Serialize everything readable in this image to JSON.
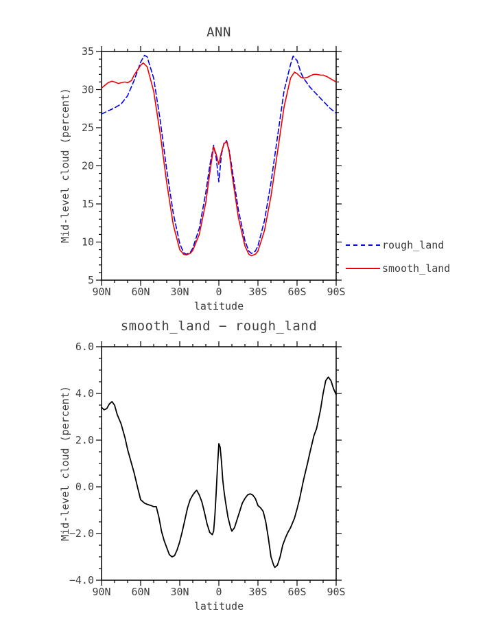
{
  "figure": {
    "background": "#ffffff",
    "text_color": "#3f3f3f",
    "axis_color": "#000000"
  },
  "top_chart": {
    "title": "ANN",
    "ylabel": "Mid-level cloud (percent)",
    "xlabel": "latitude"
  },
  "bottom_chart": {
    "title": "smooth_land − rough_land",
    "ylabel": "Mid-level cloud (percent)",
    "xlabel": "latitude"
  },
  "legend": {
    "items": [
      {
        "label": "rough_land",
        "color": "#0000ee",
        "style": "dashed"
      },
      {
        "label": "smooth_land",
        "color": "#ee0000",
        "style": "solid"
      }
    ]
  },
  "chart_data": [
    {
      "type": "line",
      "title": "ANN",
      "xlabel": "latitude",
      "ylabel": "Mid-level cloud (percent)",
      "x_range": [
        -90,
        90
      ],
      "y_range": [
        5,
        35
      ],
      "x_minor_step": 10,
      "y_minor_step": 1,
      "x_ticks": [
        {
          "v": 90,
          "label": "90N"
        },
        {
          "v": 60,
          "label": "60N"
        },
        {
          "v": 30,
          "label": "30N"
        },
        {
          "v": 0,
          "label": "0"
        },
        {
          "v": -30,
          "label": "30S"
        },
        {
          "v": -60,
          "label": "60S"
        },
        {
          "v": -90,
          "label": "90S"
        }
      ],
      "y_ticks": [
        {
          "v": 5,
          "label": "5"
        },
        {
          "v": 10,
          "label": "10"
        },
        {
          "v": 15,
          "label": "15"
        },
        {
          "v": 20,
          "label": "20"
        },
        {
          "v": 25,
          "label": "25"
        },
        {
          "v": 30,
          "label": "30"
        },
        {
          "v": 35,
          "label": "35"
        }
      ],
      "grid": false,
      "legend_position": "right",
      "series": [
        {
          "name": "rough_land",
          "color": "#0000ee",
          "dash": "7,4",
          "width": 1.6,
          "points": [
            [
              90,
              26.8
            ],
            [
              85,
              27.2
            ],
            [
              80,
              27.6
            ],
            [
              75,
              28.1
            ],
            [
              70,
              29.2
            ],
            [
              65,
              31.2
            ],
            [
              60,
              33.6
            ],
            [
              57,
              34.5
            ],
            [
              55,
              34.3
            ],
            [
              50,
              31.5
            ],
            [
              45,
              26.0
            ],
            [
              40,
              19.5
            ],
            [
              35,
              13.8
            ],
            [
              30,
              9.8
            ],
            [
              27,
              8.6
            ],
            [
              25,
              8.4
            ],
            [
              22,
              8.6
            ],
            [
              20,
              9.2
            ],
            [
              15,
              11.8
            ],
            [
              10,
              16.5
            ],
            [
              7,
              20.0
            ],
            [
              4,
              22.7
            ],
            [
              2,
              21.0
            ],
            [
              0,
              17.9
            ],
            [
              -2,
              21.5
            ],
            [
              -4,
              23.0
            ],
            [
              -6,
              23.3
            ],
            [
              -8,
              22.0
            ],
            [
              -10,
              19.8
            ],
            [
              -15,
              14.2
            ],
            [
              -20,
              10.2
            ],
            [
              -23,
              8.8
            ],
            [
              -25,
              8.5
            ],
            [
              -28,
              8.8
            ],
            [
              -30,
              9.5
            ],
            [
              -35,
              12.8
            ],
            [
              -40,
              17.8
            ],
            [
              -45,
              23.8
            ],
            [
              -50,
              29.8
            ],
            [
              -55,
              33.3
            ],
            [
              -57,
              34.4
            ],
            [
              -60,
              33.8
            ],
            [
              -63,
              32.2
            ],
            [
              -65,
              31.5
            ],
            [
              -70,
              30.3
            ],
            [
              -75,
              29.4
            ],
            [
              -80,
              28.5
            ],
            [
              -85,
              27.6
            ],
            [
              -90,
              26.9
            ]
          ]
        },
        {
          "name": "smooth_land",
          "color": "#ee0000",
          "dash": null,
          "width": 1.6,
          "points": [
            [
              90,
              30.2
            ],
            [
              85,
              30.9
            ],
            [
              82,
              31.1
            ],
            [
              80,
              31.0
            ],
            [
              77,
              30.8
            ],
            [
              75,
              30.9
            ],
            [
              72,
              31.0
            ],
            [
              70,
              30.9
            ],
            [
              67,
              31.2
            ],
            [
              65,
              31.9
            ],
            [
              60,
              33.2
            ],
            [
              58,
              33.5
            ],
            [
              55,
              33.0
            ],
            [
              50,
              29.8
            ],
            [
              45,
              24.2
            ],
            [
              40,
              17.8
            ],
            [
              35,
              12.3
            ],
            [
              30,
              9.0
            ],
            [
              27,
              8.4
            ],
            [
              25,
              8.3
            ],
            [
              22,
              8.5
            ],
            [
              20,
              8.9
            ],
            [
              15,
              11.0
            ],
            [
              10,
              15.2
            ],
            [
              7,
              19.0
            ],
            [
              4,
              22.5
            ],
            [
              2,
              21.5
            ],
            [
              0,
              20.2
            ],
            [
              -2,
              21.8
            ],
            [
              -4,
              22.9
            ],
            [
              -6,
              23.2
            ],
            [
              -8,
              21.8
            ],
            [
              -10,
              19.0
            ],
            [
              -15,
              13.2
            ],
            [
              -20,
              9.5
            ],
            [
              -23,
              8.4
            ],
            [
              -25,
              8.2
            ],
            [
              -28,
              8.4
            ],
            [
              -30,
              8.8
            ],
            [
              -35,
              11.5
            ],
            [
              -40,
              16.0
            ],
            [
              -45,
              21.8
            ],
            [
              -50,
              27.7
            ],
            [
              -55,
              31.5
            ],
            [
              -58,
              32.3
            ],
            [
              -60,
              32.1
            ],
            [
              -63,
              31.6
            ],
            [
              -65,
              31.5
            ],
            [
              -68,
              31.6
            ],
            [
              -70,
              31.8
            ],
            [
              -73,
              32.0
            ],
            [
              -75,
              32.0
            ],
            [
              -78,
              31.9
            ],
            [
              -80,
              31.9
            ],
            [
              -83,
              31.7
            ],
            [
              -85,
              31.5
            ],
            [
              -88,
              31.2
            ],
            [
              -90,
              31.0
            ]
          ]
        }
      ]
    },
    {
      "type": "line",
      "title": "smooth_land − rough_land",
      "xlabel": "latitude",
      "ylabel": "Mid-level cloud (percent)",
      "x_range": [
        -90,
        90
      ],
      "y_range": [
        -4,
        6
      ],
      "x_minor_step": 10,
      "y_minor_step": 0.5,
      "x_ticks": [
        {
          "v": 90,
          "label": "90N"
        },
        {
          "v": 60,
          "label": "60N"
        },
        {
          "v": 30,
          "label": "30N"
        },
        {
          "v": 0,
          "label": "0"
        },
        {
          "v": -30,
          "label": "30S"
        },
        {
          "v": -60,
          "label": "60S"
        },
        {
          "v": -90,
          "label": "90S"
        }
      ],
      "y_ticks": [
        {
          "v": -4,
          "label": "−4.0"
        },
        {
          "v": -2,
          "label": "−2.0"
        },
        {
          "v": 0,
          "label": "0.0"
        },
        {
          "v": 2,
          "label": "2.0"
        },
        {
          "v": 4,
          "label": "4.0"
        },
        {
          "v": 6,
          "label": "6.0"
        }
      ],
      "grid": false,
      "legend_position": "none",
      "series": [
        {
          "name": "smooth_land − rough_land",
          "color": "#000000",
          "dash": null,
          "width": 1.8,
          "points": [
            [
              90,
              3.4
            ],
            [
              88,
              3.3
            ],
            [
              86,
              3.35
            ],
            [
              84,
              3.55
            ],
            [
              82,
              3.65
            ],
            [
              80,
              3.5
            ],
            [
              78,
              3.1
            ],
            [
              75,
              2.7
            ],
            [
              72,
              2.1
            ],
            [
              70,
              1.6
            ],
            [
              67,
              1.0
            ],
            [
              65,
              0.6
            ],
            [
              62,
              -0.1
            ],
            [
              60,
              -0.55
            ],
            [
              57,
              -0.7
            ],
            [
              55,
              -0.75
            ],
            [
              52,
              -0.8
            ],
            [
              50,
              -0.85
            ],
            [
              48,
              -0.85
            ],
            [
              46,
              -1.3
            ],
            [
              44,
              -1.9
            ],
            [
              42,
              -2.3
            ],
            [
              40,
              -2.6
            ],
            [
              38,
              -2.9
            ],
            [
              36,
              -3.0
            ],
            [
              34,
              -2.95
            ],
            [
              32,
              -2.7
            ],
            [
              30,
              -2.35
            ],
            [
              28,
              -1.9
            ],
            [
              26,
              -1.4
            ],
            [
              24,
              -0.9
            ],
            [
              22,
              -0.55
            ],
            [
              20,
              -0.35
            ],
            [
              18,
              -0.2
            ],
            [
              17,
              -0.15
            ],
            [
              15,
              -0.35
            ],
            [
              13,
              -0.65
            ],
            [
              11,
              -1.1
            ],
            [
              9,
              -1.6
            ],
            [
              7,
              -1.95
            ],
            [
              5,
              -2.05
            ],
            [
              4,
              -1.9
            ],
            [
              3,
              -1.2
            ],
            [
              2,
              -0.2
            ],
            [
              1,
              0.9
            ],
            [
              0,
              1.85
            ],
            [
              -1,
              1.7
            ],
            [
              -2,
              1.1
            ],
            [
              -3,
              0.3
            ],
            [
              -4,
              -0.2
            ],
            [
              -5,
              -0.6
            ],
            [
              -7,
              -1.3
            ],
            [
              -9,
              -1.75
            ],
            [
              -10,
              -1.9
            ],
            [
              -12,
              -1.75
            ],
            [
              -14,
              -1.4
            ],
            [
              -16,
              -1.05
            ],
            [
              -18,
              -0.7
            ],
            [
              -20,
              -0.5
            ],
            [
              -22,
              -0.35
            ],
            [
              -24,
              -0.3
            ],
            [
              -26,
              -0.35
            ],
            [
              -28,
              -0.5
            ],
            [
              -30,
              -0.8
            ],
            [
              -32,
              -0.9
            ],
            [
              -34,
              -1.05
            ],
            [
              -36,
              -1.5
            ],
            [
              -38,
              -2.2
            ],
            [
              -40,
              -3.0
            ],
            [
              -42,
              -3.35
            ],
            [
              -43,
              -3.45
            ],
            [
              -45,
              -3.35
            ],
            [
              -47,
              -3.0
            ],
            [
              -49,
              -2.5
            ],
            [
              -51,
              -2.2
            ],
            [
              -53,
              -1.95
            ],
            [
              -55,
              -1.75
            ],
            [
              -58,
              -1.35
            ],
            [
              -60,
              -0.95
            ],
            [
              -62,
              -0.5
            ],
            [
              -65,
              0.3
            ],
            [
              -68,
              1.0
            ],
            [
              -70,
              1.5
            ],
            [
              -73,
              2.2
            ],
            [
              -75,
              2.5
            ],
            [
              -78,
              3.3
            ],
            [
              -80,
              4.0
            ],
            [
              -82,
              4.55
            ],
            [
              -84,
              4.7
            ],
            [
              -86,
              4.55
            ],
            [
              -88,
              4.2
            ],
            [
              -90,
              3.95
            ]
          ]
        }
      ]
    }
  ]
}
